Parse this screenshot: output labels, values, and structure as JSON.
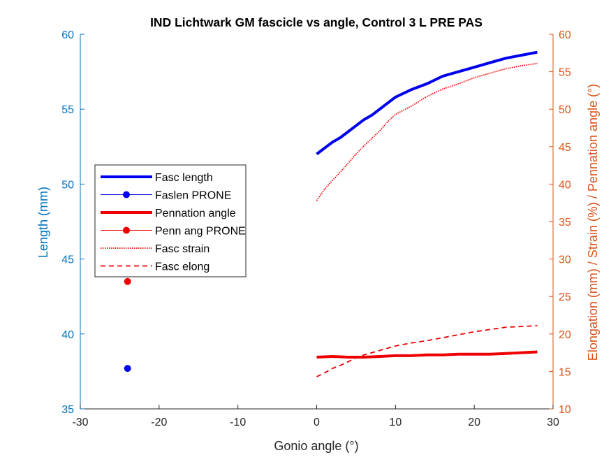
{
  "chart_data": {
    "type": "line",
    "title": "IND Lichtwark GM fascicle vs angle, Control 3 L PRE PAS",
    "xlabel": "Gonio angle (°)",
    "ylabel_left": "Length (mm)",
    "ylabel_right": "Elongation (mm) / Strain (%) / Pennation angle (°)",
    "xlim": [
      -30,
      30
    ],
    "ylim_left": [
      35,
      60
    ],
    "ylim_right": [
      10,
      60
    ],
    "xticks": [
      "-30",
      "-20",
      "-10",
      "0",
      "10",
      "20",
      "30"
    ],
    "yticks_left": [
      "35",
      "40",
      "45",
      "50",
      "55",
      "60"
    ],
    "yticks_right": [
      "10",
      "15",
      "20",
      "25",
      "30",
      "35",
      "40",
      "45",
      "50",
      "55",
      "60"
    ],
    "grid": false,
    "legend_position": "center-left",
    "colors": {
      "left_axis": "#0072BD",
      "right_axis": "#D95319",
      "blue": "#0000EE",
      "red": "#EE0000"
    },
    "series": [
      {
        "name": "Fasc length",
        "axis": "left",
        "style": "solid-thick",
        "color": "#0000EE",
        "x": [
          0,
          1,
          2,
          3,
          4,
          5,
          6,
          7,
          8,
          9,
          10,
          12,
          14,
          16,
          18,
          20,
          22,
          24,
          26,
          28
        ],
        "y": [
          52.0,
          52.4,
          52.8,
          53.1,
          53.5,
          53.9,
          54.3,
          54.6,
          55.0,
          55.4,
          55.8,
          56.3,
          56.7,
          57.2,
          57.5,
          57.8,
          58.1,
          58.4,
          58.6,
          58.8
        ]
      },
      {
        "name": "Faslen PRONE",
        "axis": "left",
        "style": "marker",
        "color": "#0000EE",
        "x": [
          -24
        ],
        "y": [
          37.7
        ]
      },
      {
        "name": "Pennation angle",
        "axis": "right",
        "style": "solid-thick",
        "color": "#EE0000",
        "x": [
          0,
          2,
          4,
          6,
          8,
          10,
          12,
          14,
          16,
          18,
          20,
          22,
          24,
          26,
          28
        ],
        "y": [
          16.9,
          17.0,
          16.9,
          16.9,
          17.0,
          17.1,
          17.1,
          17.2,
          17.2,
          17.3,
          17.3,
          17.3,
          17.4,
          17.5,
          17.6
        ]
      },
      {
        "name": "Penn ang PRONE",
        "axis": "right",
        "style": "marker",
        "color": "#EE0000",
        "x": [
          -24
        ],
        "y": [
          27.0
        ]
      },
      {
        "name": "Fasc strain",
        "axis": "right",
        "style": "dotted",
        "color": "#EE0000",
        "x": [
          0,
          1,
          2,
          3,
          4,
          5,
          6,
          7,
          8,
          9,
          10,
          12,
          14,
          16,
          18,
          20,
          22,
          24,
          26,
          28
        ],
        "y": [
          37.8,
          39.3,
          40.5,
          41.6,
          42.8,
          44.0,
          45.1,
          46.1,
          47.1,
          48.3,
          49.3,
          50.4,
          51.7,
          52.7,
          53.4,
          54.2,
          54.8,
          55.4,
          55.8,
          56.1
        ]
      },
      {
        "name": "Fasc elong",
        "axis": "right",
        "style": "dashed",
        "color": "#EE0000",
        "x": [
          0,
          1,
          2,
          3,
          4,
          5,
          6,
          7,
          8,
          9,
          10,
          12,
          14,
          16,
          18,
          20,
          22,
          24,
          26,
          28
        ],
        "y": [
          14.3,
          14.8,
          15.4,
          15.8,
          16.3,
          16.8,
          17.2,
          17.5,
          17.8,
          18.1,
          18.4,
          18.8,
          19.1,
          19.5,
          19.9,
          20.3,
          20.6,
          20.9,
          21.0,
          21.1
        ]
      }
    ]
  }
}
